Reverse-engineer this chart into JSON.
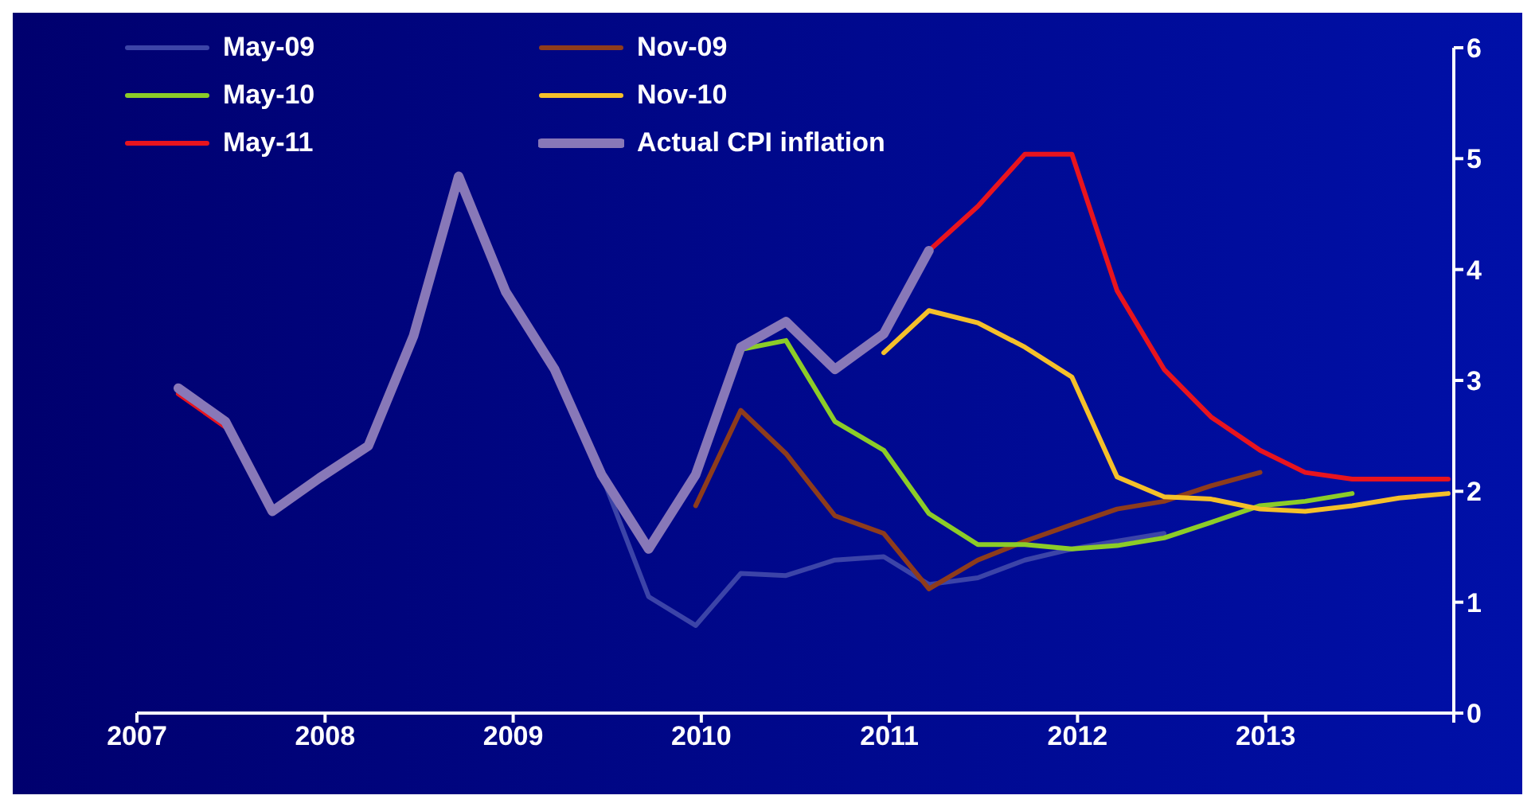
{
  "chart_data": {
    "type": "line",
    "xlim": [
      2007,
      2014
    ],
    "xticks": [
      2007,
      2008,
      2009,
      2010,
      2011,
      2012,
      2013,
      {
        "value": 2014,
        "label": null
      }
    ],
    "ylim": [
      0,
      6
    ],
    "yticks": [
      0,
      1,
      2,
      3,
      4,
      5,
      6
    ],
    "grid": false,
    "legend": "top left",
    "marker": "none",
    "line_style": "solid",
    "series": [
      {
        "name": "May-09",
        "color": "#3c44a8",
        "x": [
          2009.47,
          2009.72,
          2009.97,
          2010.21,
          2010.45,
          2010.71,
          2010.97,
          2011.21,
          2011.47,
          2011.72,
          2011.97,
          2012.21,
          2012.46
        ],
        "values": [
          2.15,
          1.05,
          0.79,
          1.26,
          1.24,
          1.38,
          1.41,
          1.16,
          1.22,
          1.38,
          1.48,
          1.55,
          1.62
        ]
      },
      {
        "name": "Nov-09",
        "color": "#8e3c1c",
        "x": [
          2009.97,
          2010.21,
          2010.45,
          2010.71,
          2010.97,
          2011.21,
          2011.47,
          2011.72,
          2011.97,
          2012.21,
          2012.46,
          2012.71,
          2012.97
        ],
        "values": [
          1.87,
          2.73,
          2.34,
          1.78,
          1.62,
          1.12,
          1.38,
          1.55,
          1.7,
          1.84,
          1.91,
          2.05,
          2.17
        ]
      },
      {
        "name": "May-10",
        "color": "#8ccc28",
        "x": [
          2010.21,
          2010.45,
          2010.71,
          2010.97,
          2011.21,
          2011.47,
          2011.72,
          2011.97,
          2012.21,
          2012.46,
          2012.71,
          2012.97,
          2013.21,
          2013.46
        ],
        "values": [
          3.28,
          3.36,
          2.63,
          2.37,
          1.8,
          1.52,
          1.52,
          1.48,
          1.51,
          1.58,
          1.72,
          1.87,
          1.91,
          1.98
        ]
      },
      {
        "name": "Nov-10",
        "color": "#f5c02a",
        "x": [
          2010.97,
          2011.21,
          2011.47,
          2011.72,
          2011.97,
          2012.21,
          2012.46,
          2012.71,
          2012.97,
          2013.21,
          2013.46,
          2013.71,
          2013.97
        ],
        "values": [
          3.25,
          3.63,
          3.52,
          3.3,
          3.03,
          2.13,
          1.95,
          1.93,
          1.84,
          1.82,
          1.87,
          1.94,
          1.98
        ]
      },
      {
        "name": "May-11",
        "color": "#e8141e",
        "x": [
          2007.22,
          2007.47,
          2009.5,
          2011.21,
          2011.47,
          2011.72,
          2011.97,
          2012.21,
          2012.46,
          2012.71,
          2012.97,
          2013.21,
          2013.46,
          2013.71,
          2013.97
        ],
        "values": [
          2.88,
          2.58,
          null,
          4.17,
          4.57,
          5.04,
          5.04,
          3.81,
          3.1,
          2.67,
          2.37,
          2.17,
          2.11,
          2.11,
          2.11
        ]
      },
      {
        "name": "Actual CPI inflation",
        "color": "#8878b8",
        "x": [
          2007.22,
          2007.47,
          2007.72,
          2007.97,
          2008.23,
          2008.47,
          2008.71,
          2008.96,
          2009.22,
          2009.47,
          2009.72,
          2009.97,
          2010.21,
          2010.45,
          2010.71,
          2010.97,
          2011.21
        ],
        "values": [
          2.93,
          2.63,
          1.82,
          2.12,
          2.41,
          3.4,
          4.84,
          3.8,
          3.1,
          2.15,
          1.48,
          2.15,
          3.3,
          3.53,
          3.1,
          3.42,
          4.17
        ]
      }
    ]
  }
}
